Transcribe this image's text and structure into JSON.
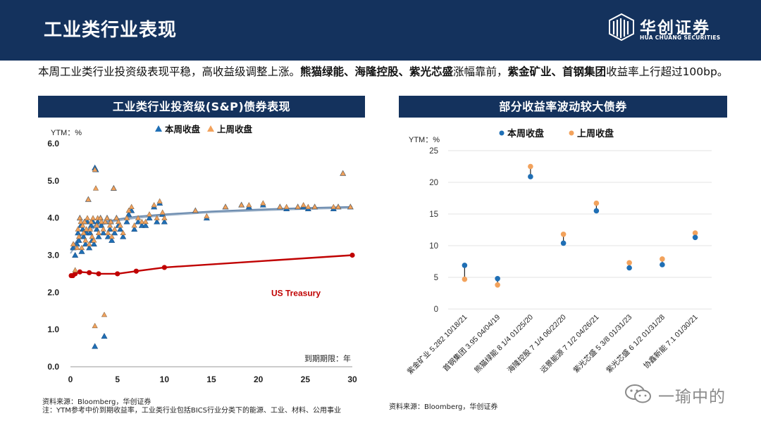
{
  "header": {
    "title": "工业类行业表现",
    "logo": {
      "cn": "华创证券",
      "en": "HUA CHUANG SECURITIES"
    }
  },
  "summary": {
    "text1": "本周工业类行业投资级表现平稳，高收益级调整上涨。",
    "bold1": "熊猫绿能、海隆控股、紫光芯盛",
    "text2": "涨幅靠前，",
    "bold2": "紫金矿业、首钢集团",
    "text3": "收益率上行超过100bp。"
  },
  "left_panel": {
    "title": "工业类行业投资级(S&P)债券表现"
  },
  "right_panel": {
    "title": "部分收益率波动较大债券"
  },
  "colors": {
    "navy": "#14325d",
    "current": "#1f6fb5",
    "previous": "#f2a25c",
    "treasury": "#c00000",
    "fit": "#6e8db0"
  },
  "chart_data": [
    {
      "type": "scatter",
      "title": "工业类行业投资级(S&P)债券表现",
      "ylabel": "YTM：%",
      "xlabel": "到期期限：年",
      "xlim": [
        0,
        30
      ],
      "ylim": [
        0,
        6
      ],
      "xticks": [
        0,
        5,
        10,
        15,
        20,
        25,
        30
      ],
      "yticks": [
        "0.0",
        "1.0",
        "2.0",
        "3.0",
        "4.0",
        "5.0",
        "6.0"
      ],
      "legend": [
        "本周收盘",
        "上周收盘"
      ],
      "annotation": "US Treasury",
      "series": [
        {
          "name": "本周收盘",
          "points": [
            [
              0.3,
              3.2
            ],
            [
              0.5,
              3.0
            ],
            [
              0.7,
              3.3
            ],
            [
              0.8,
              3.6
            ],
            [
              0.9,
              3.4
            ],
            [
              1.0,
              4.0
            ],
            [
              1.1,
              3.8
            ],
            [
              1.2,
              3.1
            ],
            [
              1.3,
              3.7
            ],
            [
              1.4,
              3.5
            ],
            [
              1.5,
              3.9
            ],
            [
              1.6,
              3.3
            ],
            [
              1.7,
              3.6
            ],
            [
              1.8,
              3.9
            ],
            [
              1.9,
              4.5
            ],
            [
              2.0,
              3.2
            ],
            [
              2.1,
              3.6
            ],
            [
              2.2,
              3.8
            ],
            [
              2.3,
              3.4
            ],
            [
              2.4,
              3.9
            ],
            [
              2.5,
              3.3
            ],
            [
              2.6,
              5.35
            ],
            [
              2.7,
              5.3
            ],
            [
              2.8,
              3.7
            ],
            [
              2.9,
              3.9
            ],
            [
              3.0,
              3.5
            ],
            [
              3.2,
              4.0
            ],
            [
              3.3,
              3.8
            ],
            [
              3.5,
              3.6
            ],
            [
              3.6,
              0.82
            ],
            [
              3.7,
              3.9
            ],
            [
              3.9,
              4.0
            ],
            [
              4.0,
              3.5
            ],
            [
              4.2,
              3.7
            ],
            [
              4.3,
              3.9
            ],
            [
              4.4,
              3.4
            ],
            [
              4.6,
              4.8
            ],
            [
              4.7,
              3.6
            ],
            [
              4.9,
              4.0
            ],
            [
              5.1,
              3.8
            ],
            [
              5.3,
              3.7
            ],
            [
              5.6,
              3.5
            ],
            [
              6.0,
              3.9
            ],
            [
              6.2,
              4.1
            ],
            [
              6.5,
              4.2
            ],
            [
              6.8,
              3.7
            ],
            [
              7.2,
              3.9
            ],
            [
              7.6,
              3.8
            ],
            [
              8.0,
              3.8
            ],
            [
              8.4,
              4.0
            ],
            [
              8.9,
              4.3
            ],
            [
              9.2,
              3.9
            ],
            [
              9.5,
              4.4
            ],
            [
              9.8,
              4.1
            ],
            [
              10.0,
              3.9
            ],
            [
              13.3,
              4.2
            ],
            [
              14.5,
              4.0
            ],
            [
              16.5,
              4.3
            ],
            [
              18.2,
              4.35
            ],
            [
              19.0,
              4.3
            ],
            [
              20.5,
              4.35
            ],
            [
              22.3,
              4.3
            ],
            [
              23.0,
              4.25
            ],
            [
              24.2,
              4.3
            ],
            [
              24.8,
              4.3
            ],
            [
              25.3,
              4.25
            ],
            [
              26.0,
              4.3
            ],
            [
              28.0,
              4.25
            ],
            [
              28.5,
              4.3
            ],
            [
              29.0,
              5.2
            ],
            [
              29.8,
              4.3
            ],
            [
              2.6,
              0.55
            ]
          ]
        },
        {
          "name": "上周收盘",
          "points": [
            [
              0.3,
              3.3
            ],
            [
              0.5,
              2.6
            ],
            [
              0.7,
              3.2
            ],
            [
              0.8,
              3.7
            ],
            [
              0.9,
              3.5
            ],
            [
              1.0,
              4.0
            ],
            [
              1.1,
              3.9
            ],
            [
              1.2,
              3.2
            ],
            [
              1.3,
              3.8
            ],
            [
              1.4,
              3.6
            ],
            [
              1.5,
              3.9
            ],
            [
              1.6,
              3.4
            ],
            [
              1.7,
              3.7
            ],
            [
              1.8,
              4.0
            ],
            [
              1.9,
              4.5
            ],
            [
              2.0,
              3.3
            ],
            [
              2.1,
              3.7
            ],
            [
              2.2,
              3.9
            ],
            [
              2.3,
              3.5
            ],
            [
              2.4,
              4.0
            ],
            [
              2.5,
              3.4
            ],
            [
              2.6,
              5.3
            ],
            [
              2.7,
              4.8
            ],
            [
              2.8,
              3.8
            ],
            [
              2.9,
              4.0
            ],
            [
              3.0,
              3.6
            ],
            [
              3.2,
              4.0
            ],
            [
              3.3,
              3.9
            ],
            [
              3.5,
              3.7
            ],
            [
              3.6,
              1.4
            ],
            [
              3.7,
              3.9
            ],
            [
              3.9,
              4.0
            ],
            [
              4.0,
              3.6
            ],
            [
              4.2,
              3.8
            ],
            [
              4.3,
              3.9
            ],
            [
              4.4,
              3.5
            ],
            [
              4.6,
              4.8
            ],
            [
              4.7,
              3.7
            ],
            [
              4.9,
              4.0
            ],
            [
              5.1,
              3.9
            ],
            [
              5.3,
              3.8
            ],
            [
              5.6,
              3.6
            ],
            [
              6.0,
              4.0
            ],
            [
              6.2,
              4.2
            ],
            [
              6.5,
              4.3
            ],
            [
              6.8,
              3.8
            ],
            [
              7.2,
              4.0
            ],
            [
              7.6,
              3.9
            ],
            [
              8.0,
              3.9
            ],
            [
              8.4,
              4.1
            ],
            [
              8.9,
              4.35
            ],
            [
              9.2,
              4.0
            ],
            [
              9.5,
              4.45
            ],
            [
              9.8,
              4.15
            ],
            [
              10.0,
              4.0
            ],
            [
              13.3,
              4.2
            ],
            [
              14.5,
              4.05
            ],
            [
              16.5,
              4.3
            ],
            [
              18.2,
              4.35
            ],
            [
              19.0,
              4.35
            ],
            [
              20.5,
              4.4
            ],
            [
              22.3,
              4.3
            ],
            [
              23.0,
              4.3
            ],
            [
              24.2,
              4.3
            ],
            [
              24.8,
              4.35
            ],
            [
              25.3,
              4.3
            ],
            [
              26.0,
              4.3
            ],
            [
              28.0,
              4.3
            ],
            [
              28.5,
              4.3
            ],
            [
              29.0,
              5.2
            ],
            [
              29.8,
              4.3
            ],
            [
              2.6,
              1.1
            ]
          ]
        }
      ],
      "treasury": [
        [
          0.08,
          2.45
        ],
        [
          0.25,
          2.45
        ],
        [
          0.5,
          2.5
        ],
        [
          1,
          2.55
        ],
        [
          2,
          2.53
        ],
        [
          3,
          2.5
        ],
        [
          5,
          2.5
        ],
        [
          7,
          2.57
        ],
        [
          10,
          2.67
        ],
        [
          30,
          3.0
        ]
      ],
      "fit_curves": {
        "upper": [
          [
            0,
            3.15
          ],
          [
            1,
            3.5
          ],
          [
            2,
            3.72
          ],
          [
            3,
            3.85
          ],
          [
            5,
            3.97
          ],
          [
            7,
            4.04
          ],
          [
            10,
            4.1
          ],
          [
            15,
            4.18
          ],
          [
            20,
            4.23
          ],
          [
            25,
            4.27
          ],
          [
            30,
            4.3
          ]
        ],
        "lower": [
          [
            0,
            3.05
          ],
          [
            1,
            3.43
          ],
          [
            2,
            3.66
          ],
          [
            3,
            3.8
          ],
          [
            5,
            3.93
          ],
          [
            7,
            4.0
          ],
          [
            10,
            4.07
          ],
          [
            15,
            4.15
          ],
          [
            20,
            4.2
          ],
          [
            25,
            4.24
          ],
          [
            30,
            4.27
          ]
        ]
      }
    },
    {
      "type": "scatter",
      "title": "部分收益率波动较大债券",
      "ylabel": "YTM：%",
      "ylim": [
        0,
        25
      ],
      "yticks": [
        0,
        5,
        10,
        15,
        20,
        25
      ],
      "legend": [
        "本周收盘",
        "上周收盘"
      ],
      "categories": [
        "紫金矿业 5.282 10/18/21",
        "首钢集团 3.95 04/04/19",
        "熊猫绿能 8 1/4 01/25/20",
        "海隆控股 7 1/4 06/22/20",
        "远景能源 7 1/2 04/26/21",
        "紫光芯盛 5 3/8 01/31/23",
        "紫光芯盛 6 1/2 01/31/28",
        "协鑫新能 7.1 01/30/21"
      ],
      "series": [
        {
          "name": "本周收盘",
          "values": [
            6.9,
            4.8,
            20.9,
            10.4,
            15.5,
            6.5,
            7.0,
            11.3
          ]
        },
        {
          "name": "上周收盘",
          "values": [
            4.7,
            3.8,
            22.5,
            11.8,
            16.7,
            7.3,
            7.9,
            12.0
          ]
        }
      ]
    }
  ],
  "footnotes": {
    "left_source": "资料来源：Bloomberg，华创证券",
    "left_note": "注：YTM参考中价到期收益率，工业类行业包括BICS行业分类下的能源、工业、材料、公用事业",
    "right_source": "资料来源：Bloomberg，华创证券"
  },
  "watermark": {
    "text": "一瑜中的"
  }
}
